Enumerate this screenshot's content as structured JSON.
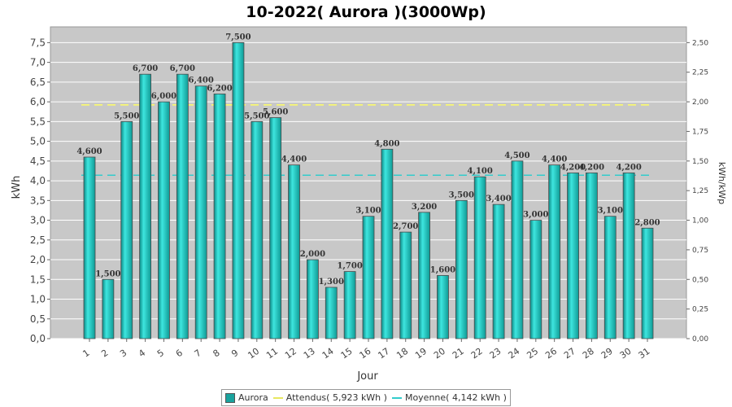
{
  "chart_data": {
    "type": "bar",
    "title": "10-2022( Aurora )(3000Wp)",
    "xlabel": "Jour",
    "ylabel": "kWh",
    "y2label": "kWh/kWp",
    "ylim": [
      0,
      7.9
    ],
    "y2lim": [
      0,
      2.633
    ],
    "yticks": [
      "0,0",
      "0,5",
      "1,0",
      "1,5",
      "2,0",
      "2,5",
      "3,0",
      "3,5",
      "4,0",
      "4,5",
      "5,0",
      "5,5",
      "6,0",
      "6,5",
      "7,0",
      "7,5"
    ],
    "y2ticks": [
      "0,00",
      "0,25",
      "0,50",
      "0,75",
      "1,00",
      "1,25",
      "1,50",
      "1,75",
      "2,00",
      "2,25",
      "2,50"
    ],
    "categories": [
      "1",
      "2",
      "3",
      "4",
      "5",
      "6",
      "7",
      "8",
      "9",
      "10",
      "11",
      "12",
      "13",
      "14",
      "15",
      "16",
      "17",
      "18",
      "19",
      "20",
      "21",
      "22",
      "23",
      "24",
      "25",
      "26",
      "27",
      "28",
      "29",
      "30",
      "31"
    ],
    "series": [
      {
        "name": "Aurora",
        "values": [
          4.6,
          1.5,
          5.5,
          6.7,
          6.0,
          6.7,
          6.4,
          6.2,
          7.5,
          5.5,
          5.6,
          4.4,
          2.0,
          1.3,
          1.7,
          3.1,
          4.8,
          2.7,
          3.2,
          1.6,
          3.5,
          4.1,
          3.4,
          4.5,
          3.0,
          4.4,
          4.2,
          4.2,
          3.1,
          4.2,
          2.8
        ],
        "labels": [
          "4,600",
          "1,500",
          "5,500",
          "6,700",
          "6,000",
          "6,700",
          "6,400",
          "6,200",
          "7,500",
          "5,500",
          "5,600",
          "4,400",
          "2,000",
          "1,300",
          "1,700",
          "3,100",
          "4,800",
          "2,700",
          "3,200",
          "1,600",
          "3,500",
          "4,100",
          "3,400",
          "4,500",
          "3,000",
          "4,400",
          "4,200",
          "4,200",
          "3,100",
          "4,200",
          "2,800"
        ],
        "color": "#1ab3ad"
      }
    ],
    "lines": [
      {
        "name": "Attendus( 5,923 kWh )",
        "value": 5.923,
        "color": "#ffff66"
      },
      {
        "name": "Moyenne( 4,142 kWh )",
        "value": 4.142,
        "color": "#33cccc"
      }
    ],
    "grid": true,
    "legend": "bottom",
    "background": "#c8c8c8"
  }
}
